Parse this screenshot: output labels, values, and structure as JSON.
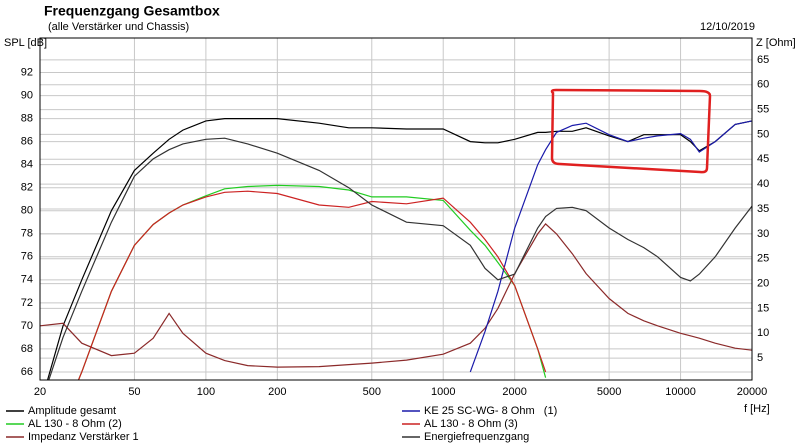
{
  "chart_data": {
    "type": "line",
    "title": "Frequenzgang Gesamtbox",
    "subtitle": "(alle Verstärker und Chassis)",
    "date": "12/10/2019",
    "y_label": "SPL [dB]",
    "y2_label": "Z [Ohm]",
    "x_label": "f [Hz]",
    "log_x": true,
    "grid": true,
    "xlim": [
      20,
      20000
    ],
    "xticks": [
      20,
      50,
      100,
      200,
      500,
      1000,
      2000,
      5000,
      10000,
      20000
    ],
    "ylim": [
      65.3,
      95
    ],
    "yticks": [
      66,
      68,
      70,
      72,
      74,
      76,
      78,
      80,
      82,
      84,
      86,
      88,
      90,
      92
    ],
    "y2lim": [
      0.6,
      69.4
    ],
    "y2ticks": [
      5,
      10,
      15,
      20,
      25,
      30,
      35,
      40,
      45,
      50,
      55,
      60,
      65
    ],
    "x": [
      20,
      25,
      30,
      40,
      50,
      60,
      70,
      80,
      100,
      120,
      150,
      200,
      300,
      400,
      500,
      700,
      1000,
      1300,
      1500,
      1700,
      2000,
      2500,
      2700,
      3000,
      3500,
      4000,
      5000,
      6000,
      7000,
      8000,
      10000,
      11000,
      12000,
      14000,
      17000,
      20000
    ],
    "series": [
      {
        "name": "Amplitude gesamt",
        "color": "#000000",
        "values": [
          63,
          70,
          74,
          80,
          83.5,
          85,
          86.2,
          87,
          87.8,
          88,
          88,
          88,
          87.6,
          87.2,
          87.2,
          87.1,
          87.1,
          86,
          85.9,
          85.9,
          86.2,
          86.8,
          86.8,
          86.9,
          86.9,
          87.2,
          86.5,
          86,
          86.6,
          86.6,
          86.6,
          86,
          85.2,
          86,
          87.5,
          87.8
        ]
      },
      {
        "name": "AL 130 - 8 Ohm (2)",
        "color": "#22cc22",
        "values": [
          58,
          62,
          66,
          73,
          77,
          78.8,
          79.8,
          80.5,
          81.3,
          81.9,
          82.1,
          82.2,
          82.1,
          81.8,
          81.2,
          81.2,
          80.9,
          78.3,
          77,
          75.5,
          73.5,
          68,
          65.5,
          null,
          null,
          null,
          null,
          null,
          null,
          null,
          null,
          null,
          null,
          null,
          null,
          null
        ]
      },
      {
        "name": "Impedanz Verstärker 1",
        "color": "#8b2a2a",
        "axis": "y2",
        "values": [
          11.5,
          12,
          8,
          5.5,
          6,
          9,
          14,
          10,
          6,
          4.5,
          3.5,
          3.2,
          3.3,
          3.7,
          4,
          4.6,
          5.8,
          8,
          11,
          15,
          22,
          30,
          32,
          30,
          26,
          22,
          17,
          14,
          12.5,
          11.5,
          10,
          9.5,
          9,
          8,
          7,
          6.6
        ]
      },
      {
        "name": "KE 25 SC-WG- 8 Ohm   (1)",
        "color": "#1a1aaa",
        "values": [
          null,
          null,
          null,
          null,
          null,
          null,
          null,
          null,
          null,
          null,
          null,
          null,
          null,
          null,
          null,
          null,
          null,
          66,
          69.5,
          73,
          78.5,
          84,
          85.3,
          86.8,
          87.4,
          87.6,
          86.6,
          86,
          86.3,
          86.5,
          86.7,
          86.2,
          85.1,
          86,
          87.5,
          87.8
        ]
      },
      {
        "name": "AL 130 - 8 Ohm (3)",
        "color": "#cc2222",
        "values": [
          58,
          62,
          66,
          73,
          77,
          78.8,
          79.8,
          80.5,
          81.2,
          81.6,
          81.7,
          81.5,
          80.5,
          80.3,
          80.8,
          80.6,
          81.1,
          79,
          77.5,
          76,
          73.5,
          68,
          66,
          null,
          null,
          null,
          null,
          null,
          null,
          null,
          null,
          null,
          null,
          null,
          null,
          null
        ]
      },
      {
        "name": "Energiefrequenzgang",
        "color": "#333333",
        "values": [
          63,
          69,
          73,
          79,
          83,
          84.5,
          85.3,
          85.8,
          86.2,
          86.3,
          85.8,
          85,
          83.5,
          82,
          80.5,
          79,
          78.7,
          77,
          75,
          74,
          74.5,
          78.5,
          79.5,
          80.2,
          80.3,
          80,
          78.5,
          77.5,
          76.8,
          76,
          74.2,
          73.9,
          74.5,
          76,
          78.5,
          80.4
        ]
      }
    ]
  }
}
